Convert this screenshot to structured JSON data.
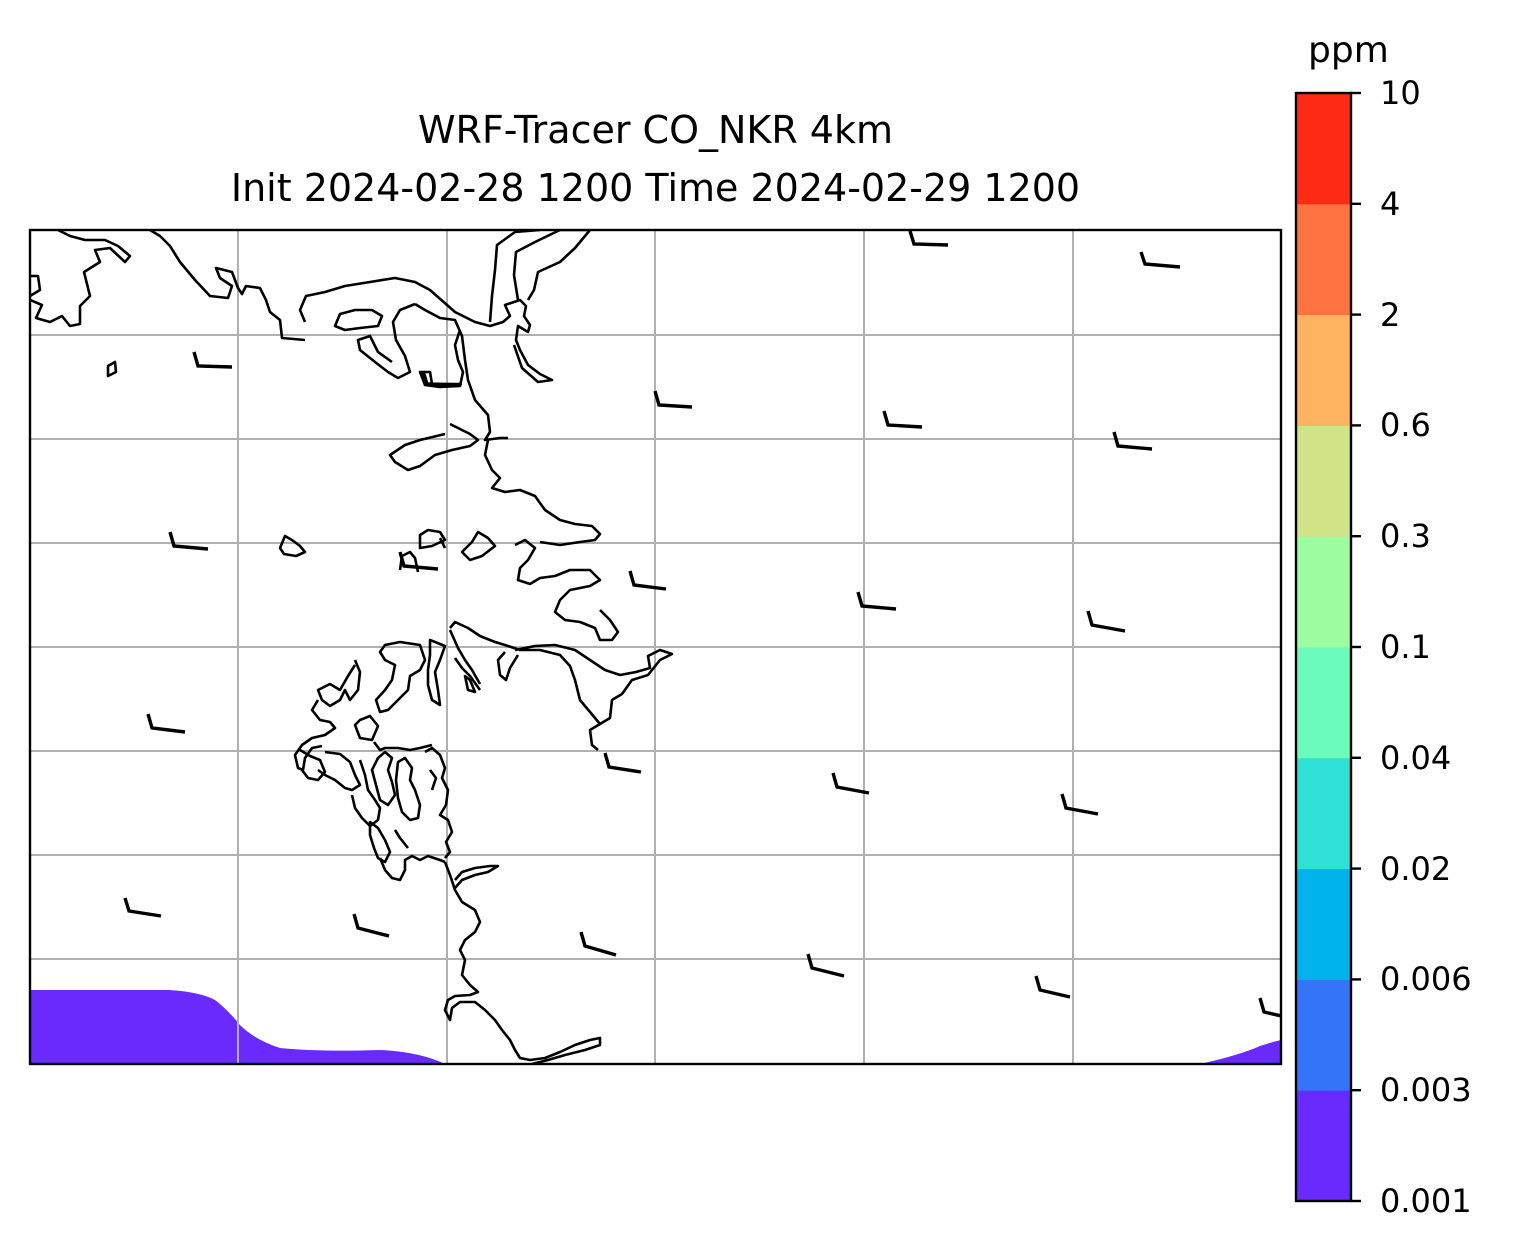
{
  "title": {
    "line1": "WRF-Tracer CO_NKR 4km",
    "line2": "Init 2024-02-28 1200 Time 2024-02-29 1200"
  },
  "colorbar": {
    "unit": "ppm",
    "levels": [
      "0.001",
      "0.003",
      "0.006",
      "0.02",
      "0.04",
      "0.1",
      "0.3",
      "0.6",
      "2",
      "4",
      "10"
    ],
    "colors": [
      "#6a2afe",
      "#3474f6",
      "#00b4eb",
      "#2fe0d6",
      "#6bfcbc",
      "#9cfca0",
      "#d1e287",
      "#feb360",
      "#fe7341",
      "#fe2a15"
    ]
  },
  "map": {
    "background": "#ffffff",
    "field_fill_color": "#6a2afe",
    "field_fill_level": "0.001",
    "gridlines": true,
    "gridline_color": "#b0b0b0",
    "coastline_color": "#000000",
    "wind_barbs": "black"
  }
}
